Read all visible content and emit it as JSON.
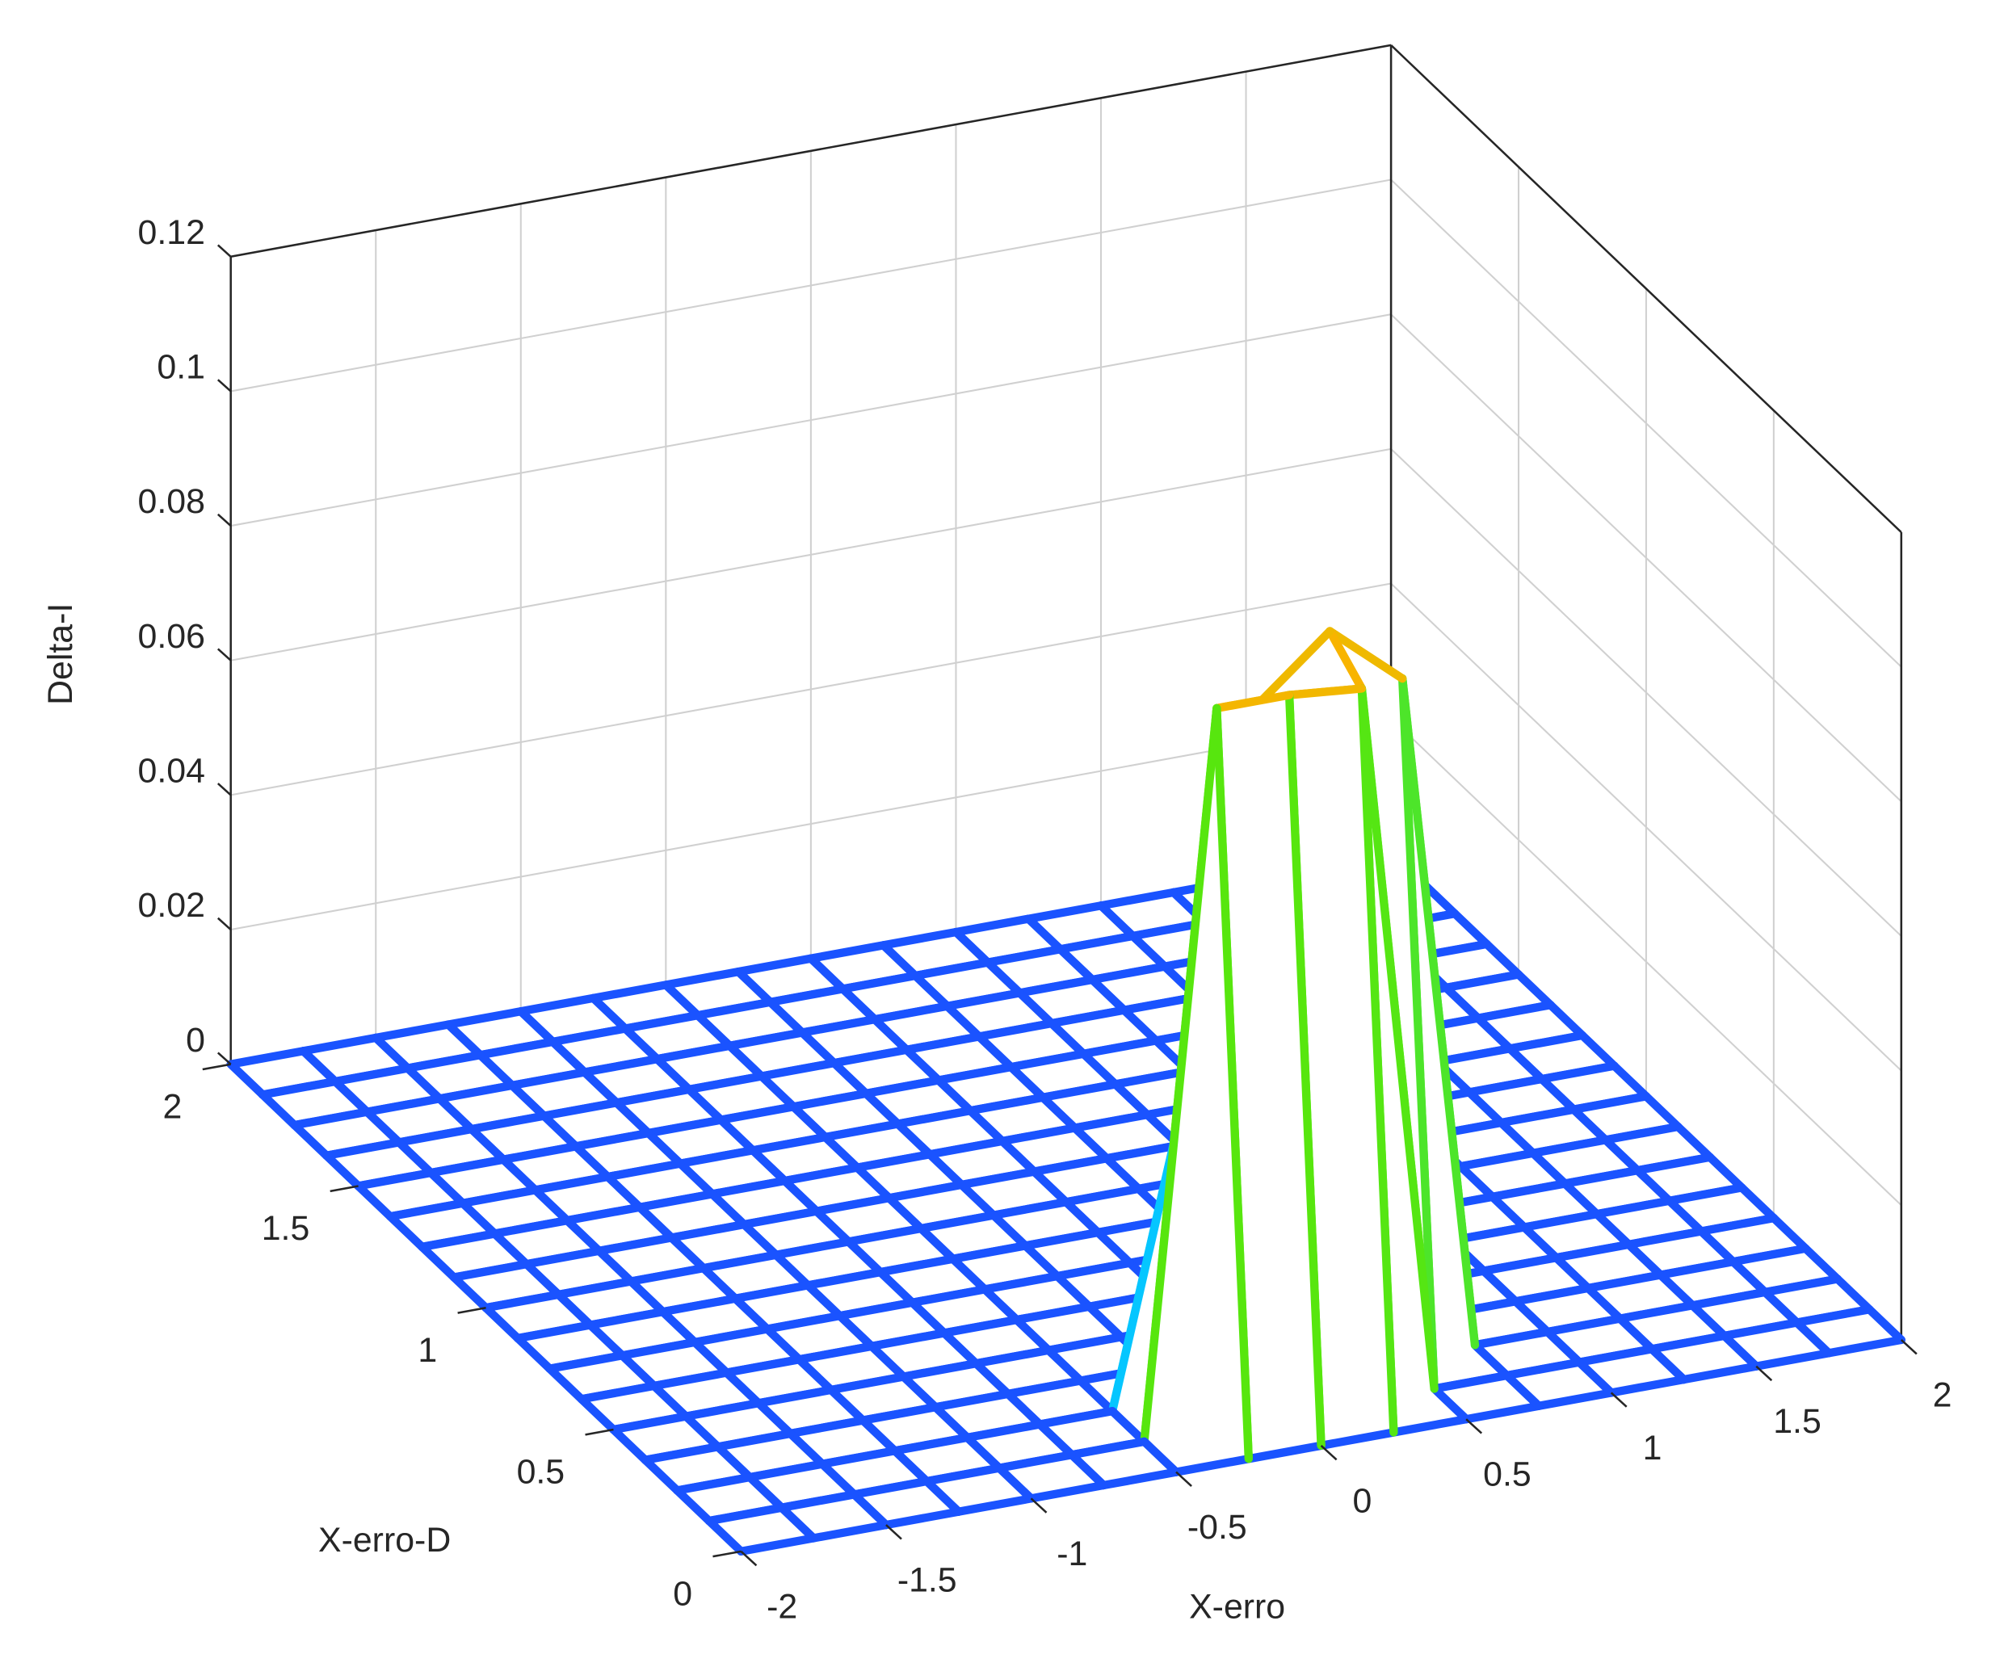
{
  "chart_data": {
    "type": "mesh3d",
    "xlabel": "X-erro",
    "ylabel": "X-erro-D",
    "zlabel": "Delta-I",
    "x": [
      -2,
      -1.75,
      -1.5,
      -1.25,
      -1,
      -0.75,
      -0.5,
      -0.25,
      0,
      0.25,
      0.5,
      0.75,
      1,
      1.25,
      1.5,
      1.75,
      2
    ],
    "y": [
      0,
      0.125,
      0.25,
      0.375,
      0.5,
      0.625,
      0.75,
      0.875,
      1,
      1.125,
      1.25,
      1.375,
      1.5,
      1.625,
      1.75,
      1.875,
      2
    ],
    "z": [
      [
        0,
        0,
        0,
        0,
        0,
        0,
        0,
        0,
        0,
        0,
        0,
        0,
        0,
        0,
        0,
        0,
        0
      ],
      [
        0,
        0,
        0,
        0,
        0,
        0,
        0,
        0.107,
        0.107,
        0.106,
        0,
        0,
        0,
        0,
        0,
        0,
        0
      ],
      [
        0,
        0,
        0,
        0,
        0,
        0,
        0,
        0.045,
        0.101,
        0.11,
        0.101,
        0,
        0,
        0,
        0,
        0,
        0
      ],
      [
        0,
        0,
        0,
        0,
        0,
        0,
        0,
        0,
        0.04,
        0.04,
        0,
        0,
        0,
        0,
        0,
        0,
        0
      ],
      [
        0,
        0,
        0,
        0,
        0,
        0,
        0,
        0,
        0,
        0,
        0,
        0,
        0,
        0,
        0,
        0,
        0
      ],
      [
        0,
        0,
        0,
        0,
        0,
        0,
        0,
        0,
        0,
        0,
        0,
        0,
        0,
        0,
        0,
        0,
        0
      ],
      [
        0,
        0,
        0,
        0,
        0,
        0,
        0,
        0,
        0,
        0,
        0,
        0,
        0,
        0,
        0,
        0,
        0
      ],
      [
        0,
        0,
        0,
        0,
        0,
        0,
        0,
        0,
        0,
        0,
        0,
        0,
        0,
        0,
        0,
        0,
        0
      ],
      [
        0,
        0,
        0,
        0,
        0,
        0,
        0,
        0,
        0,
        0,
        0,
        0,
        0,
        0,
        0,
        0,
        0
      ],
      [
        0,
        0,
        0,
        0,
        0,
        0,
        0,
        0,
        0,
        0,
        0,
        0,
        0,
        0,
        0,
        0,
        0
      ],
      [
        0,
        0,
        0,
        0,
        0,
        0,
        0,
        0,
        0,
        0,
        0,
        0,
        0,
        0,
        0,
        0,
        0
      ],
      [
        0,
        0,
        0,
        0,
        0,
        0,
        0,
        0,
        0,
        0,
        0,
        0,
        0,
        0,
        0,
        0,
        0
      ],
      [
        0,
        0,
        0,
        0,
        0,
        0,
        0,
        0,
        0,
        0,
        0,
        0,
        0,
        0,
        0,
        0,
        0
      ],
      [
        0,
        0,
        0,
        0,
        0,
        0,
        0,
        0,
        0,
        0,
        0,
        0,
        0,
        0,
        0,
        0,
        0
      ],
      [
        0,
        0,
        0,
        0,
        0,
        0,
        0,
        0,
        0,
        0,
        0,
        0,
        0,
        0,
        0,
        0,
        0
      ],
      [
        0,
        0,
        0,
        0,
        0,
        0,
        0,
        0,
        0,
        0,
        0,
        0,
        0,
        0,
        0,
        0,
        0
      ],
      [
        0,
        0,
        0,
        0,
        0,
        0,
        0,
        0,
        0,
        0,
        0,
        0,
        0,
        0,
        0,
        0,
        0
      ]
    ],
    "xlim": [
      -2,
      2
    ],
    "ylim": [
      0,
      2
    ],
    "zlim": [
      0,
      0.12
    ],
    "xticks": [
      -2,
      -1.5,
      -1,
      -0.5,
      0,
      0.5,
      1,
      1.5,
      2
    ],
    "yticks": [
      0,
      0.5,
      1,
      1.5,
      2
    ],
    "zticks": [
      0,
      0.02,
      0.04,
      0.06,
      0.08,
      0.1,
      0.12
    ],
    "grid": true,
    "colormap": [
      "#1a53ff",
      "#00e0ff",
      "#5ce600",
      "#9be800",
      "#ffb000"
    ]
  }
}
